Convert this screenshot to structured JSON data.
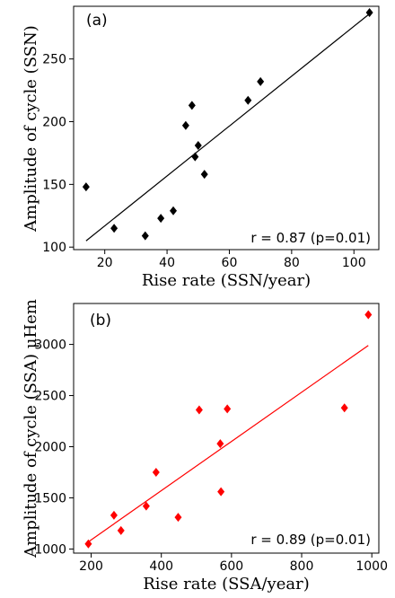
{
  "chart_data": [
    {
      "type": "scatter",
      "panel_label": "(a)",
      "xlabel": "Rise rate (SSN/year)",
      "ylabel": "Amplitude of cycle (SSN)",
      "xlim": [
        10,
        108
      ],
      "ylim": [
        98,
        292
      ],
      "xticks": [
        20,
        40,
        60,
        80,
        100
      ],
      "yticks": [
        100,
        150,
        200,
        250
      ],
      "annotation": "r = 0.87 (p=0.01)",
      "marker": "diamond",
      "color": "#000000",
      "points": [
        {
          "x": 14,
          "y": 148
        },
        {
          "x": 23,
          "y": 115
        },
        {
          "x": 33,
          "y": 109
        },
        {
          "x": 38,
          "y": 123
        },
        {
          "x": 42,
          "y": 129
        },
        {
          "x": 46,
          "y": 197
        },
        {
          "x": 48,
          "y": 213
        },
        {
          "x": 49,
          "y": 172
        },
        {
          "x": 50,
          "y": 181
        },
        {
          "x": 52,
          "y": 158
        },
        {
          "x": 66,
          "y": 217
        },
        {
          "x": 70,
          "y": 232
        },
        {
          "x": 105,
          "y": 287
        }
      ],
      "fit_line": [
        {
          "x": 14,
          "y": 105
        },
        {
          "x": 105,
          "y": 286
        }
      ]
    },
    {
      "type": "scatter",
      "panel_label": "(b)",
      "xlabel": "Rise rate (SSA/year)",
      "ylabel": "Amplitude of cycle (SSA) μHem",
      "xlim": [
        150,
        1020
      ],
      "ylim": [
        960,
        3400
      ],
      "xticks": [
        200,
        400,
        600,
        800,
        1000
      ],
      "yticks": [
        1000,
        1500,
        2000,
        2500,
        3000
      ],
      "annotation": "r = 0.89 (p=0.01)",
      "marker": "diamond",
      "color": "#ff0000",
      "points": [
        {
          "x": 192,
          "y": 1050
        },
        {
          "x": 265,
          "y": 1330
        },
        {
          "x": 285,
          "y": 1180
        },
        {
          "x": 357,
          "y": 1420
        },
        {
          "x": 385,
          "y": 1750
        },
        {
          "x": 448,
          "y": 1310
        },
        {
          "x": 508,
          "y": 2360
        },
        {
          "x": 568,
          "y": 2030
        },
        {
          "x": 570,
          "y": 1560
        },
        {
          "x": 588,
          "y": 2370
        },
        {
          "x": 922,
          "y": 2380
        },
        {
          "x": 990,
          "y": 3290
        }
      ],
      "fit_line": [
        {
          "x": 192,
          "y": 1070
        },
        {
          "x": 990,
          "y": 2990
        }
      ]
    }
  ]
}
